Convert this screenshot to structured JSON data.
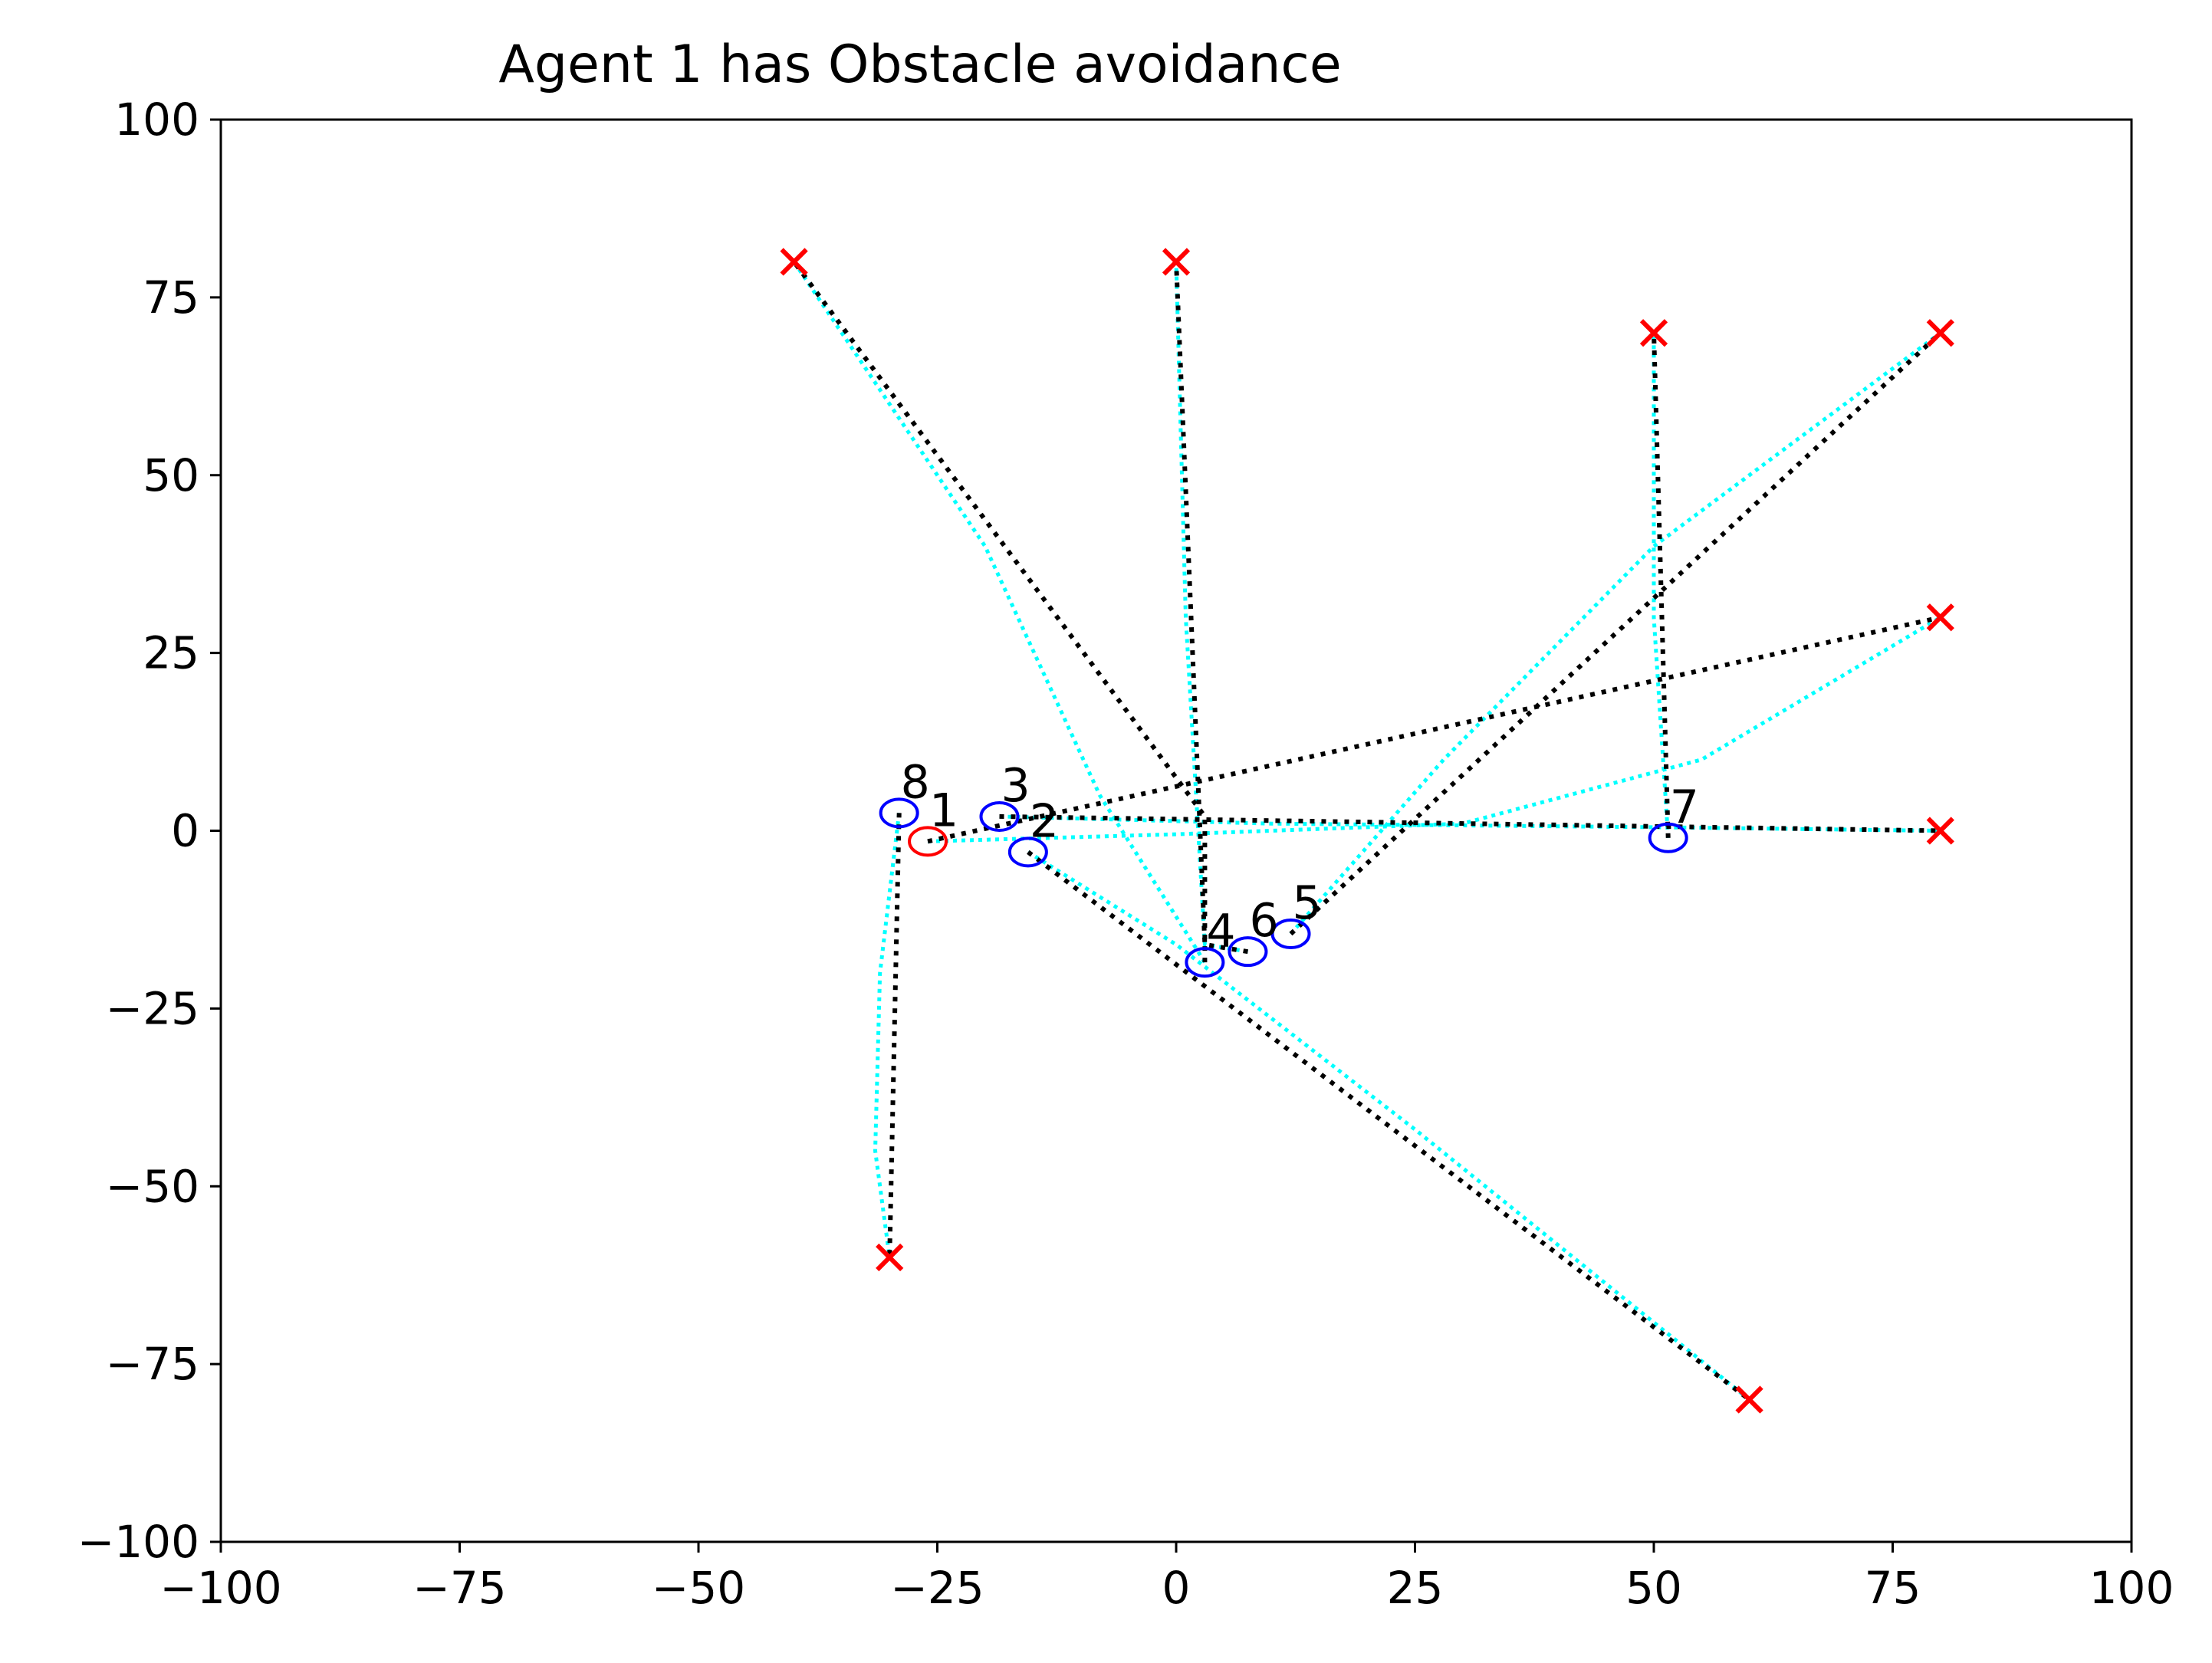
{
  "chart_data": {
    "type": "scatter",
    "title": "Agent 1 has Obstacle avoidance",
    "xlabel": "",
    "ylabel": "",
    "xlim": [
      -100,
      100
    ],
    "ylim": [
      -100,
      100
    ],
    "x_ticks": [
      -100,
      -75,
      -50,
      -25,
      0,
      25,
      50,
      75,
      100
    ],
    "y_ticks": [
      -100,
      -75,
      -50,
      -25,
      0,
      25,
      50,
      75,
      100
    ],
    "x_tick_labels": [
      "−100",
      "−75",
      "−50",
      "−25",
      "0",
      "25",
      "50",
      "75",
      "100"
    ],
    "y_tick_labels": [
      "−100",
      "−75",
      "−50",
      "−25",
      "0",
      "25",
      "50",
      "75",
      "100"
    ],
    "grid": false,
    "colors": {
      "goal_marker": "#ff0000",
      "ego_agent": "#ff0000",
      "other_agents": "#0000ff",
      "planned_path": "#000000",
      "actual_path": "#00ffff"
    },
    "goals": [
      {
        "x": -40,
        "y": 80
      },
      {
        "x": 0,
        "y": 80
      },
      {
        "x": 50,
        "y": 70
      },
      {
        "x": 80,
        "y": 70
      },
      {
        "x": 80,
        "y": 30
      },
      {
        "x": 80,
        "y": 0
      },
      {
        "x": -30,
        "y": -60
      },
      {
        "x": 60,
        "y": -80
      }
    ],
    "agents": [
      {
        "label": "1",
        "x": -26,
        "y": -1.5,
        "color": "#ff0000",
        "planned_path": [
          [
            -26,
            -1.5
          ],
          [
            80,
            30
          ]
        ],
        "actual_path": [
          [
            -26,
            -1.5
          ],
          [
            0,
            -0.5
          ],
          [
            30,
            1
          ],
          [
            55,
            10
          ],
          [
            80,
            30
          ]
        ]
      },
      {
        "label": "2",
        "x": -15.5,
        "y": -3,
        "color": "#0000ff",
        "planned_path": [
          [
            -15.5,
            -3
          ],
          [
            60,
            -80
          ]
        ],
        "actual_path": [
          [
            -15.5,
            -3
          ],
          [
            0,
            -16
          ],
          [
            25,
            -42
          ],
          [
            60,
            -80
          ]
        ]
      },
      {
        "label": "3",
        "x": -18.5,
        "y": 2,
        "color": "#0000ff",
        "planned_path": [
          [
            -18.5,
            2
          ],
          [
            80,
            0
          ]
        ],
        "actual_path": [
          [
            -18.5,
            2
          ],
          [
            10,
            1
          ],
          [
            50,
            0.5
          ],
          [
            80,
            0
          ]
        ]
      },
      {
        "label": "4",
        "x": 3,
        "y": -18.5,
        "color": "#0000ff",
        "planned_path": [
          [
            3,
            -18.5
          ],
          [
            3,
            2
          ],
          [
            -40,
            80
          ]
        ],
        "actual_path": [
          [
            3,
            -18.5
          ],
          [
            -8,
            5
          ],
          [
            -20,
            40
          ],
          [
            -40,
            80
          ]
        ]
      },
      {
        "label": "5",
        "x": 12,
        "y": -14.5,
        "color": "#0000ff",
        "planned_path": [
          [
            12,
            -14.5
          ],
          [
            80,
            70
          ]
        ],
        "actual_path": [
          [
            12,
            -14.5
          ],
          [
            28,
            10
          ],
          [
            50,
            40
          ],
          [
            80,
            70
          ]
        ]
      },
      {
        "label": "6",
        "x": 7.5,
        "y": -17,
        "color": "#0000ff",
        "planned_path": [
          [
            7.5,
            -17
          ],
          [
            3,
            -16
          ],
          [
            0,
            80
          ]
        ],
        "actual_path": [
          [
            7.5,
            -17
          ],
          [
            3,
            -16
          ],
          [
            1,
            30
          ],
          [
            0,
            80
          ]
        ]
      },
      {
        "label": "7",
        "x": 51.5,
        "y": -1,
        "color": "#0000ff",
        "planned_path": [
          [
            51.5,
            -1
          ],
          [
            50,
            70
          ]
        ],
        "actual_path": [
          [
            51.5,
            -1
          ],
          [
            50,
            30
          ],
          [
            50,
            70
          ]
        ]
      },
      {
        "label": "8",
        "x": -29,
        "y": 2.5,
        "color": "#0000ff",
        "planned_path": [
          [
            -29,
            2.5
          ],
          [
            -30,
            -60
          ]
        ],
        "actual_path": [
          [
            -29,
            2.5
          ],
          [
            -31,
            -20
          ],
          [
            -31.5,
            -45
          ],
          [
            -30,
            -60
          ]
        ]
      }
    ]
  }
}
